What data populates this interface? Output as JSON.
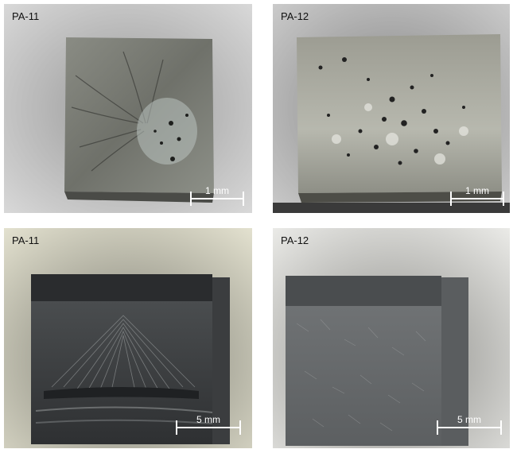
{
  "panels": [
    {
      "label": "PA-11",
      "scale": "1 mm"
    },
    {
      "label": "PA-12",
      "scale": "1 mm"
    },
    {
      "label": "PA-11",
      "scale": "5 mm"
    },
    {
      "label": "PA-12",
      "scale": "5 mm"
    }
  ]
}
